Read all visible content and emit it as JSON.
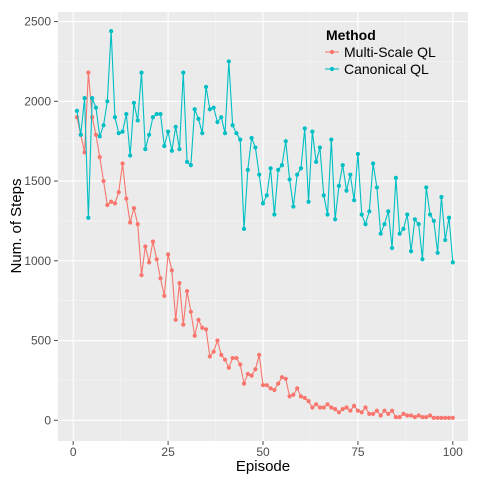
{
  "chart_data": {
    "type": "line",
    "xlabel": "Episode",
    "ylabel": "Num. of Steps",
    "xlim": [
      -4,
      104
    ],
    "ylim": [
      -130,
      2560
    ],
    "x_ticks": [
      0,
      25,
      50,
      75,
      100
    ],
    "y_ticks": [
      0,
      500,
      1000,
      1500,
      2000,
      2500
    ],
    "grid": true,
    "legend": {
      "title": "Method",
      "placement": "top-right"
    },
    "series": [
      {
        "name": "Multi-Scale QL",
        "color": "#F8766D",
        "values": [
          1900,
          1790,
          1680,
          2180,
          1900,
          1790,
          1650,
          1500,
          1350,
          1370,
          1360,
          1430,
          1610,
          1390,
          1240,
          1330,
          1230,
          910,
          1090,
          990,
          1120,
          1010,
          890,
          780,
          1040,
          940,
          630,
          860,
          600,
          810,
          680,
          530,
          630,
          580,
          570,
          400,
          430,
          500,
          410,
          380,
          330,
          390,
          390,
          350,
          230,
          290,
          280,
          320,
          410,
          220,
          220,
          200,
          190,
          230,
          270,
          260,
          150,
          160,
          200,
          150,
          140,
          120,
          80,
          100,
          80,
          80,
          100,
          80,
          70,
          50,
          70,
          80,
          60,
          90,
          60,
          50,
          80,
          40,
          40,
          60,
          30,
          60,
          40,
          60,
          20,
          20,
          40,
          30,
          30,
          20,
          30,
          20,
          20,
          30,
          15,
          15,
          15,
          15,
          15,
          15
        ]
      },
      {
        "name": "Canonical QL",
        "color": "#00BFC4",
        "values": [
          1940,
          1790,
          2020,
          1270,
          2020,
          1960,
          1780,
          1850,
          2000,
          2440,
          1900,
          1800,
          1810,
          1920,
          1660,
          1990,
          1880,
          2180,
          1700,
          1790,
          1900,
          1920,
          1920,
          1720,
          1810,
          1690,
          1840,
          1700,
          2180,
          1620,
          1600,
          1950,
          1890,
          1800,
          2090,
          1950,
          1960,
          1870,
          1900,
          1800,
          2250,
          1850,
          1800,
          1760,
          1200,
          1570,
          1770,
          1710,
          1540,
          1360,
          1410,
          1580,
          1290,
          1570,
          1600,
          1750,
          1510,
          1340,
          1540,
          1580,
          1830,
          1370,
          1810,
          1620,
          1710,
          1410,
          1290,
          1760,
          1260,
          1470,
          1600,
          1440,
          1540,
          1380,
          1670,
          1290,
          1230,
          1310,
          1610,
          1460,
          1170,
          1230,
          1310,
          1080,
          1520,
          1170,
          1200,
          1290,
          1060,
          1260,
          1230,
          1010,
          1460,
          1290,
          1250,
          1050,
          1400,
          1130,
          1270,
          990
        ]
      }
    ]
  }
}
